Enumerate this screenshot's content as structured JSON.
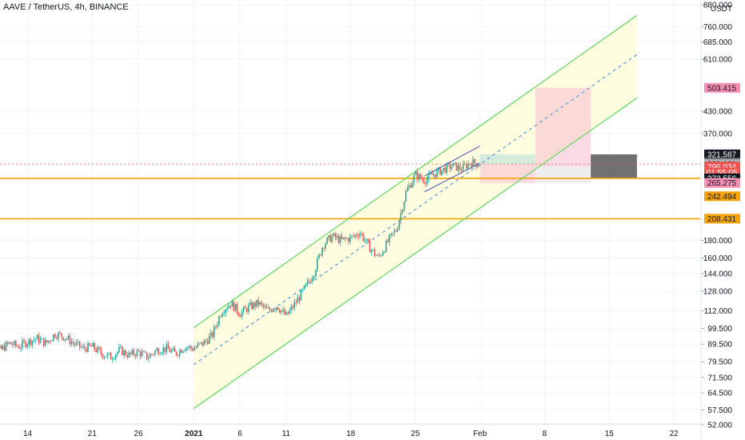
{
  "header": {
    "symbol_title": "AAVE / TetherUS, 4h, BINANCE"
  },
  "price_scale": {
    "currency": "USDT"
  },
  "chart_data": {
    "type": "candlestick",
    "title": "AAVE / TetherUS, 4h, BINANCE",
    "y_scale": "log",
    "ylim": [
      49,
      900
    ],
    "y_ticks": [
      52,
      57.5,
      64.5,
      71.5,
      79.5,
      89.5,
      99.5,
      112,
      128,
      144,
      160,
      180,
      370,
      430,
      610,
      685,
      760,
      880
    ],
    "y_tick_labels": [
      "52.000",
      "57.500",
      "64.500",
      "71.500",
      "79.500",
      "89.500",
      "99.500",
      "112.000",
      "128.000",
      "144.000",
      "160.000",
      "180.000",
      "370.000",
      "430.000",
      "610.000",
      "685.000",
      "760.000",
      "880.000"
    ],
    "x_range_days": [
      "2020-12-09",
      "2021-01-27"
    ],
    "x_ticks": [
      {
        "label": "14",
        "date": "2020-12-14",
        "bold": false
      },
      {
        "label": "21",
        "date": "2020-12-21",
        "bold": false
      },
      {
        "label": "26",
        "date": "2020-12-26",
        "bold": false
      },
      {
        "label": "2021",
        "date": "2021-01-01",
        "bold": true
      },
      {
        "label": "6",
        "date": "2021-01-06",
        "bold": false
      },
      {
        "label": "11",
        "date": "2021-01-11",
        "bold": false
      },
      {
        "label": "18",
        "date": "2021-01-18",
        "bold": false
      },
      {
        "label": "25",
        "date": "2021-01-25",
        "bold": false
      },
      {
        "label": "Feb",
        "date": "2021-02-01",
        "bold": false
      },
      {
        "label": "8",
        "date": "2021-02-08",
        "bold": false
      },
      {
        "label": "15",
        "date": "2021-02-15",
        "bold": false
      },
      {
        "label": "22",
        "date": "2021-02-22",
        "bold": false
      }
    ],
    "price_path": [
      [
        "2020-12-09",
        82
      ],
      [
        "2020-12-10",
        88
      ],
      [
        "2020-12-11",
        86
      ],
      [
        "2020-12-12",
        90
      ],
      [
        "2020-12-13",
        88
      ],
      [
        "2020-12-14",
        91
      ],
      [
        "2020-12-15",
        93
      ],
      [
        "2020-12-16",
        90
      ],
      [
        "2020-12-17",
        96
      ],
      [
        "2020-12-18",
        94
      ],
      [
        "2020-12-19",
        90
      ],
      [
        "2020-12-20",
        87
      ],
      [
        "2020-12-21",
        88
      ],
      [
        "2020-12-22",
        84
      ],
      [
        "2020-12-23",
        82
      ],
      [
        "2020-12-24",
        86
      ],
      [
        "2020-12-25",
        83
      ],
      [
        "2020-12-26",
        85
      ],
      [
        "2020-12-27",
        82
      ],
      [
        "2020-12-28",
        86
      ],
      [
        "2020-12-29",
        87
      ],
      [
        "2020-12-30",
        84
      ],
      [
        "2020-12-31",
        88
      ],
      [
        "2021-01-01",
        87
      ],
      [
        "2021-01-02",
        90
      ],
      [
        "2021-01-03",
        95
      ],
      [
        "2021-01-04",
        112
      ],
      [
        "2021-01-05",
        118
      ],
      [
        "2021-01-06",
        110
      ],
      [
        "2021-01-07",
        115
      ],
      [
        "2021-01-08",
        118
      ],
      [
        "2021-01-09",
        112
      ],
      [
        "2021-01-10",
        116
      ],
      [
        "2021-01-11",
        108
      ],
      [
        "2021-01-12",
        118
      ],
      [
        "2021-01-13",
        130
      ],
      [
        "2021-01-14",
        145
      ],
      [
        "2021-01-15",
        175
      ],
      [
        "2021-01-16",
        185
      ],
      [
        "2021-01-17",
        180
      ],
      [
        "2021-01-18",
        183
      ],
      [
        "2021-01-19",
        190
      ],
      [
        "2021-01-20",
        172
      ],
      [
        "2021-01-21",
        160
      ],
      [
        "2021-01-22",
        178
      ],
      [
        "2021-01-23",
        195
      ],
      [
        "2021-01-24",
        250
      ],
      [
        "2021-01-25",
        280
      ],
      [
        "2021-01-26",
        270
      ],
      [
        "2021-01-27",
        282
      ],
      [
        "2021-01-28",
        290
      ],
      [
        "2021-01-29",
        298
      ],
      [
        "2021-01-30",
        292
      ],
      [
        "2021-01-31",
        305
      ],
      [
        "2021-02-01",
        301
      ]
    ],
    "price_channel": {
      "upper": [
        [
          "2021-01-01",
          100
        ],
        [
          "2021-02-18",
          820
        ]
      ],
      "middle": [
        [
          "2021-01-01",
          78
        ],
        [
          "2021-02-18",
          630
        ]
      ],
      "lower": [
        [
          "2021-01-01",
          58
        ],
        [
          "2021-02-18",
          470
        ]
      ]
    },
    "rising_wedge": {
      "upper": [
        [
          "2021-01-26",
          278
        ],
        [
          "2021-02-01",
          340
        ]
      ],
      "lower": [
        [
          "2021-01-26",
          250
        ],
        [
          "2021-02-01",
          303
        ]
      ]
    },
    "horizontal_levels": [
      {
        "value": 273.556,
        "color": "#f5a300"
      },
      {
        "value": 208.431,
        "color": "#f5a300"
      }
    ],
    "current_price_line": 301.161,
    "position_zones": [
      {
        "x0": "2021-02-01",
        "x1": "2021-02-07",
        "y0": 301.161,
        "y1": 321.587,
        "color": "#b2dfdb"
      },
      {
        "x0": "2021-02-01",
        "x1": "2021-02-07",
        "y0": 265.275,
        "y1": 301.161,
        "color": "#f8bbd0"
      },
      {
        "x0": "2021-02-07",
        "x1": "2021-02-13",
        "y0": 296.034,
        "y1": 503.415,
        "color": "#f8bbd0"
      },
      {
        "x0": "2021-02-07",
        "x1": "2021-02-13",
        "y0": 265.275,
        "y1": 296.034,
        "color": "#e0e0e0"
      },
      {
        "x0": "2021-02-13",
        "x1": "2021-02-18",
        "y0": 273.556,
        "y1": 321.587,
        "color": "#424242"
      }
    ],
    "price_badges": [
      {
        "label": "503.415",
        "value": 503.415,
        "bg": "#f48fb1",
        "fg": "#131722"
      },
      {
        "label": "321.587",
        "value": 321.587,
        "bg": "#131722",
        "fg": "#ffffff"
      },
      {
        "label": "304.187",
        "value": 304.187,
        "bg": "#757575",
        "fg": "#ffffff"
      },
      {
        "label": "301.161",
        "value": 301.161,
        "bg": "#b0b0b0",
        "fg": "#131722"
      },
      {
        "label": "296.034",
        "value": 296.034,
        "bg": "#ef5350",
        "fg": "#ffffff"
      },
      {
        "label": "01:55:05",
        "value": 284.5,
        "bg": "#ef5350",
        "fg": "#ffffff"
      },
      {
        "label": "273.556",
        "value": 273.556,
        "bg": "#131722",
        "fg": "#ffffff"
      },
      {
        "label": "265.275",
        "value": 265.275,
        "bg": "#f48fb1",
        "fg": "#131722"
      },
      {
        "label": "242.494",
        "value": 242.494,
        "bg": "#f5a300",
        "fg": "#131722"
      },
      {
        "label": "208.431",
        "value": 208.431,
        "bg": "#f5a300",
        "fg": "#131722"
      }
    ]
  },
  "colors": {
    "up": "#26a69a",
    "down": "#ef5350",
    "channel_line": "#5cd65c",
    "channel_fill": "#fffde0",
    "channel_mid": "#5b9bd5",
    "wedge": "#3f51b5",
    "current_line": "#ef5350",
    "grid": "#f0f3fa",
    "axis_text": "#131722"
  }
}
